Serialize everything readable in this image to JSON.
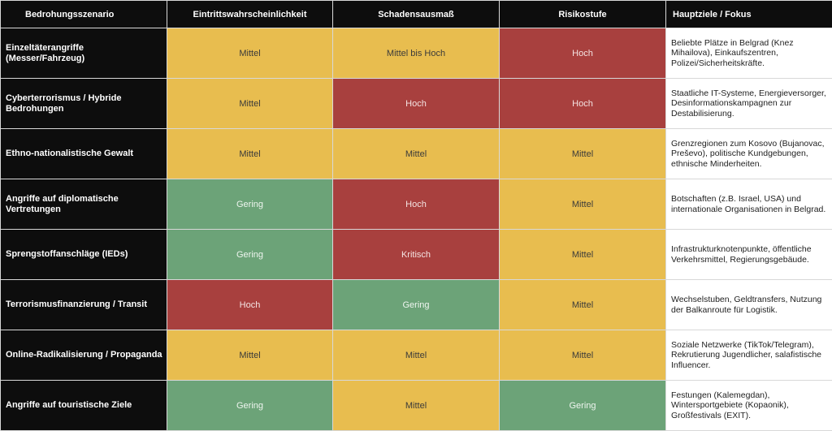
{
  "headers": [
    "Bedrohungsszenario",
    "Eintrittswahrscheinlichkeit",
    "Schadensausmaß",
    "Risikostufe",
    "Hauptziele / Fokus"
  ],
  "colors": {
    "yellow": "#e8bd4f",
    "red": "#a8403e",
    "green": "#6ca378",
    "header": "#0d0d0d"
  },
  "rows": [
    {
      "scenario": "Einzeltäterangriffe (Messer/Fahrzeug)",
      "probability": "Mittel",
      "impact": "Mittel bis Hoch",
      "risk": "Hoch",
      "focus": "Beliebte Plätze in Belgrad (Knez Mihailova), Einkaufszentren, Polizei/Sicherheitskräfte."
    },
    {
      "scenario": "Cyberterrorismus / Hybride Bedrohungen",
      "probability": "Mittel",
      "impact": "Hoch",
      "risk": "Hoch",
      "focus": "Staatliche IT-Systeme, Energieversorger, Desinformationskampagnen zur Destabilisierung."
    },
    {
      "scenario": "Ethno-nationalistische Gewalt",
      "probability": "Mittel",
      "impact": "Mittel",
      "risk": "Mittel",
      "focus": "Grenzregionen zum Kosovo (Bujanovac, Preševo), politische Kundgebungen, ethnische Minderheiten."
    },
    {
      "scenario": "Angriffe auf diplomatische Vertretungen",
      "probability": "Gering",
      "impact": "Hoch",
      "risk": "Mittel",
      "focus": "Botschaften (z.B. Israel, USA) und internationale Organisationen in Belgrad."
    },
    {
      "scenario": "Sprengstoffanschläge (IEDs)",
      "probability": "Gering",
      "impact": "Kritisch",
      "risk": "Mittel",
      "focus": "Infrastrukturknotenpunkte, öffentliche Verkehrsmittel, Regierungsgebäude."
    },
    {
      "scenario": "Terrorismusfinanzierung / Transit",
      "probability": "Hoch",
      "impact": "Gering",
      "risk": "Mittel",
      "focus": "Wechselstuben, Geldtransfers, Nutzung der Balkanroute für Logistik."
    },
    {
      "scenario": "Online-Radikalisierung / Propaganda",
      "probability": "Mittel",
      "impact": "Mittel",
      "risk": "Mittel",
      "focus": "Soziale Netzwerke (TikTok/Telegram), Rekrutierung Jugendlicher, salafistische Influencer."
    },
    {
      "scenario": "Angriffe auf touristische Ziele",
      "probability": "Gering",
      "impact": "Mittel",
      "risk": "Gering",
      "focus": "Festungen (Kalemegdan), Wintersportgebiete (Kopaonik), Großfestivals (EXIT)."
    }
  ]
}
